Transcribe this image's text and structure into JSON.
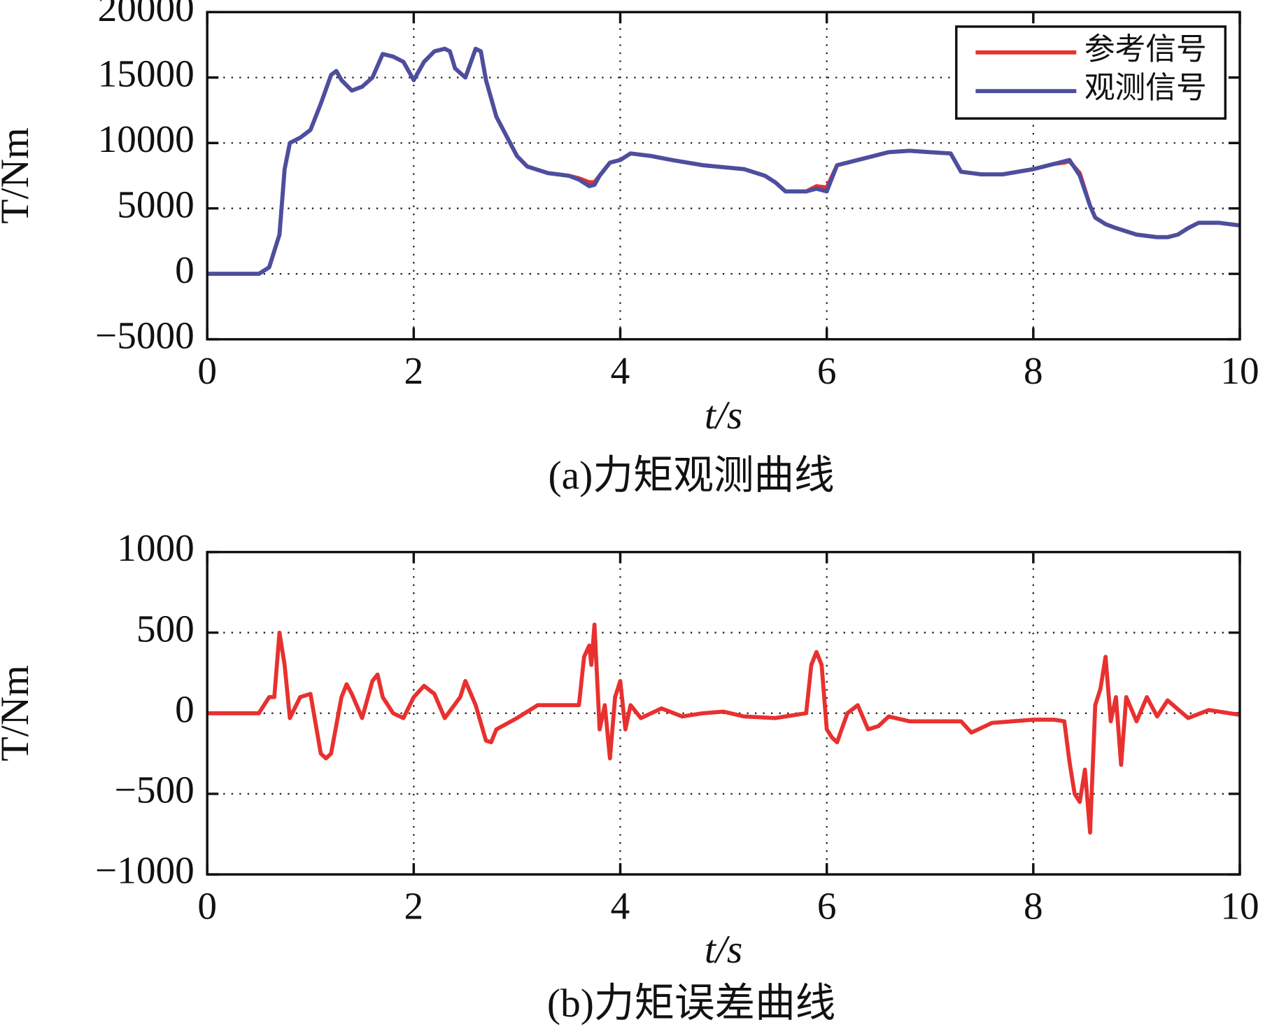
{
  "chart_data": [
    {
      "type": "line",
      "title": "(a)力矩观测曲线",
      "xlabel": "t/s",
      "ylabel": "T/Nm",
      "x": [
        0,
        0.5,
        0.6,
        0.7,
        0.75,
        0.8,
        0.9,
        1.0,
        1.1,
        1.2,
        1.25,
        1.3,
        1.4,
        1.5,
        1.6,
        1.7,
        1.8,
        1.9,
        2.0,
        2.1,
        2.2,
        2.3,
        2.35,
        2.4,
        2.5,
        2.6,
        2.65,
        2.7,
        2.8,
        3.0,
        3.1,
        3.3,
        3.5,
        3.6,
        3.7,
        3.75,
        3.8,
        3.9,
        4.0,
        4.1,
        4.3,
        4.5,
        4.8,
        5.2,
        5.4,
        5.5,
        5.6,
        5.8,
        5.9,
        6.0,
        6.1,
        6.2,
        6.4,
        6.6,
        6.8,
        7.0,
        7.2,
        7.3,
        7.5,
        7.7,
        8.0,
        8.2,
        8.3,
        8.35,
        8.45,
        8.55,
        8.6,
        8.7,
        8.8,
        9.0,
        9.2,
        9.3,
        9.4,
        9.5,
        9.6,
        9.8,
        10.0
      ],
      "series": [
        {
          "name": "参考信号",
          "color": "#e8312f",
          "values": [
            0,
            0,
            500,
            3000,
            8000,
            10000,
            10400,
            11000,
            13000,
            15200,
            15500,
            14800,
            14000,
            14300,
            15000,
            16800,
            16600,
            16200,
            14800,
            16200,
            17000,
            17200,
            17000,
            15700,
            15000,
            17200,
            17000,
            14800,
            12000,
            9000,
            8200,
            7700,
            7500,
            7300,
            7000,
            7000,
            7500,
            8500,
            8700,
            9200,
            9000,
            8700,
            8300,
            8000,
            7500,
            7000,
            6300,
            6300,
            6700,
            6600,
            8300,
            8500,
            8900,
            9300,
            9400,
            9300,
            9200,
            7800,
            7600,
            7600,
            8000,
            8400,
            8500,
            8600,
            7700,
            5200,
            4300,
            3800,
            3500,
            3000,
            2800,
            2800,
            3000,
            3500,
            3900,
            3900,
            3700
          ]
        },
        {
          "name": "观测信号",
          "color": "#4b4fa0",
          "values": [
            0,
            0,
            500,
            3000,
            8000,
            10000,
            10400,
            11000,
            13000,
            15200,
            15500,
            14800,
            14000,
            14300,
            15000,
            16800,
            16600,
            16200,
            14800,
            16200,
            17000,
            17200,
            17000,
            15700,
            15000,
            17200,
            17000,
            14800,
            12000,
            9000,
            8200,
            7700,
            7500,
            7200,
            6700,
            6800,
            7500,
            8500,
            8700,
            9200,
            9000,
            8700,
            8300,
            8000,
            7500,
            7000,
            6300,
            6300,
            6500,
            6300,
            8300,
            8500,
            8900,
            9300,
            9400,
            9300,
            9200,
            7800,
            7600,
            7600,
            8000,
            8400,
            8600,
            8700,
            7500,
            5200,
            4300,
            3800,
            3500,
            3000,
            2800,
            2800,
            3000,
            3500,
            3900,
            3900,
            3700
          ]
        }
      ],
      "xlim": [
        0,
        10
      ],
      "xticks": [
        0,
        2,
        4,
        6,
        8,
        10
      ],
      "ylim": [
        -5000,
        20000
      ],
      "yticks": [
        {
          "value": -5000,
          "label": "−5000"
        },
        0,
        5000,
        10000,
        15000,
        20000
      ],
      "grid": true,
      "legend": "upper right"
    },
    {
      "type": "line",
      "title": "(b)力矩误差曲线",
      "xlabel": "t/s",
      "ylabel": "T/Nm",
      "x": [
        0,
        0.5,
        0.6,
        0.65,
        0.7,
        0.75,
        0.8,
        0.9,
        1.0,
        1.1,
        1.15,
        1.2,
        1.3,
        1.35,
        1.4,
        1.5,
        1.6,
        1.65,
        1.7,
        1.8,
        1.9,
        2.0,
        2.1,
        2.2,
        2.3,
        2.45,
        2.5,
        2.6,
        2.7,
        2.75,
        2.8,
        3.0,
        3.2,
        3.5,
        3.6,
        3.65,
        3.7,
        3.72,
        3.75,
        3.8,
        3.85,
        3.9,
        3.95,
        4.0,
        4.05,
        4.1,
        4.2,
        4.4,
        4.6,
        4.8,
        5.0,
        5.2,
        5.5,
        5.8,
        5.85,
        5.9,
        5.95,
        6.0,
        6.05,
        6.1,
        6.2,
        6.3,
        6.4,
        6.5,
        6.6,
        6.8,
        7.0,
        7.3,
        7.4,
        7.6,
        8.0,
        8.2,
        8.3,
        8.35,
        8.4,
        8.45,
        8.5,
        8.55,
        8.6,
        8.65,
        8.7,
        8.75,
        8.8,
        8.85,
        8.9,
        9.0,
        9.1,
        9.2,
        9.3,
        9.5,
        9.7,
        10.0
      ],
      "series": [
        {
          "color": "#e8312f",
          "values": [
            0,
            0,
            100,
            100,
            500,
            300,
            -30,
            100,
            120,
            -250,
            -280,
            -250,
            100,
            180,
            120,
            -30,
            200,
            240,
            100,
            0,
            -30,
            100,
            170,
            120,
            -30,
            100,
            200,
            50,
            -170,
            -180,
            -100,
            -30,
            50,
            50,
            50,
            350,
            420,
            300,
            550,
            -100,
            50,
            -280,
            100,
            200,
            -100,
            50,
            -30,
            30,
            -20,
            0,
            10,
            -20,
            -30,
            0,
            300,
            380,
            300,
            -100,
            -150,
            -180,
            0,
            50,
            -100,
            -80,
            -20,
            -50,
            -50,
            -50,
            -120,
            -60,
            -40,
            -40,
            -50,
            -300,
            -500,
            -550,
            -350,
            -740,
            50,
            150,
            350,
            -50,
            100,
            -320,
            100,
            -50,
            100,
            -20,
            80,
            -30,
            20,
            -10
          ]
        }
      ],
      "xlim": [
        0,
        10
      ],
      "xticks": [
        0,
        2,
        4,
        6,
        8,
        10
      ],
      "ylim": [
        -1000,
        1000
      ],
      "yticks": [
        {
          "value": -1000,
          "label": "−1000"
        },
        {
          "value": -500,
          "label": "−500"
        },
        0,
        500,
        1000
      ],
      "grid": true
    }
  ]
}
